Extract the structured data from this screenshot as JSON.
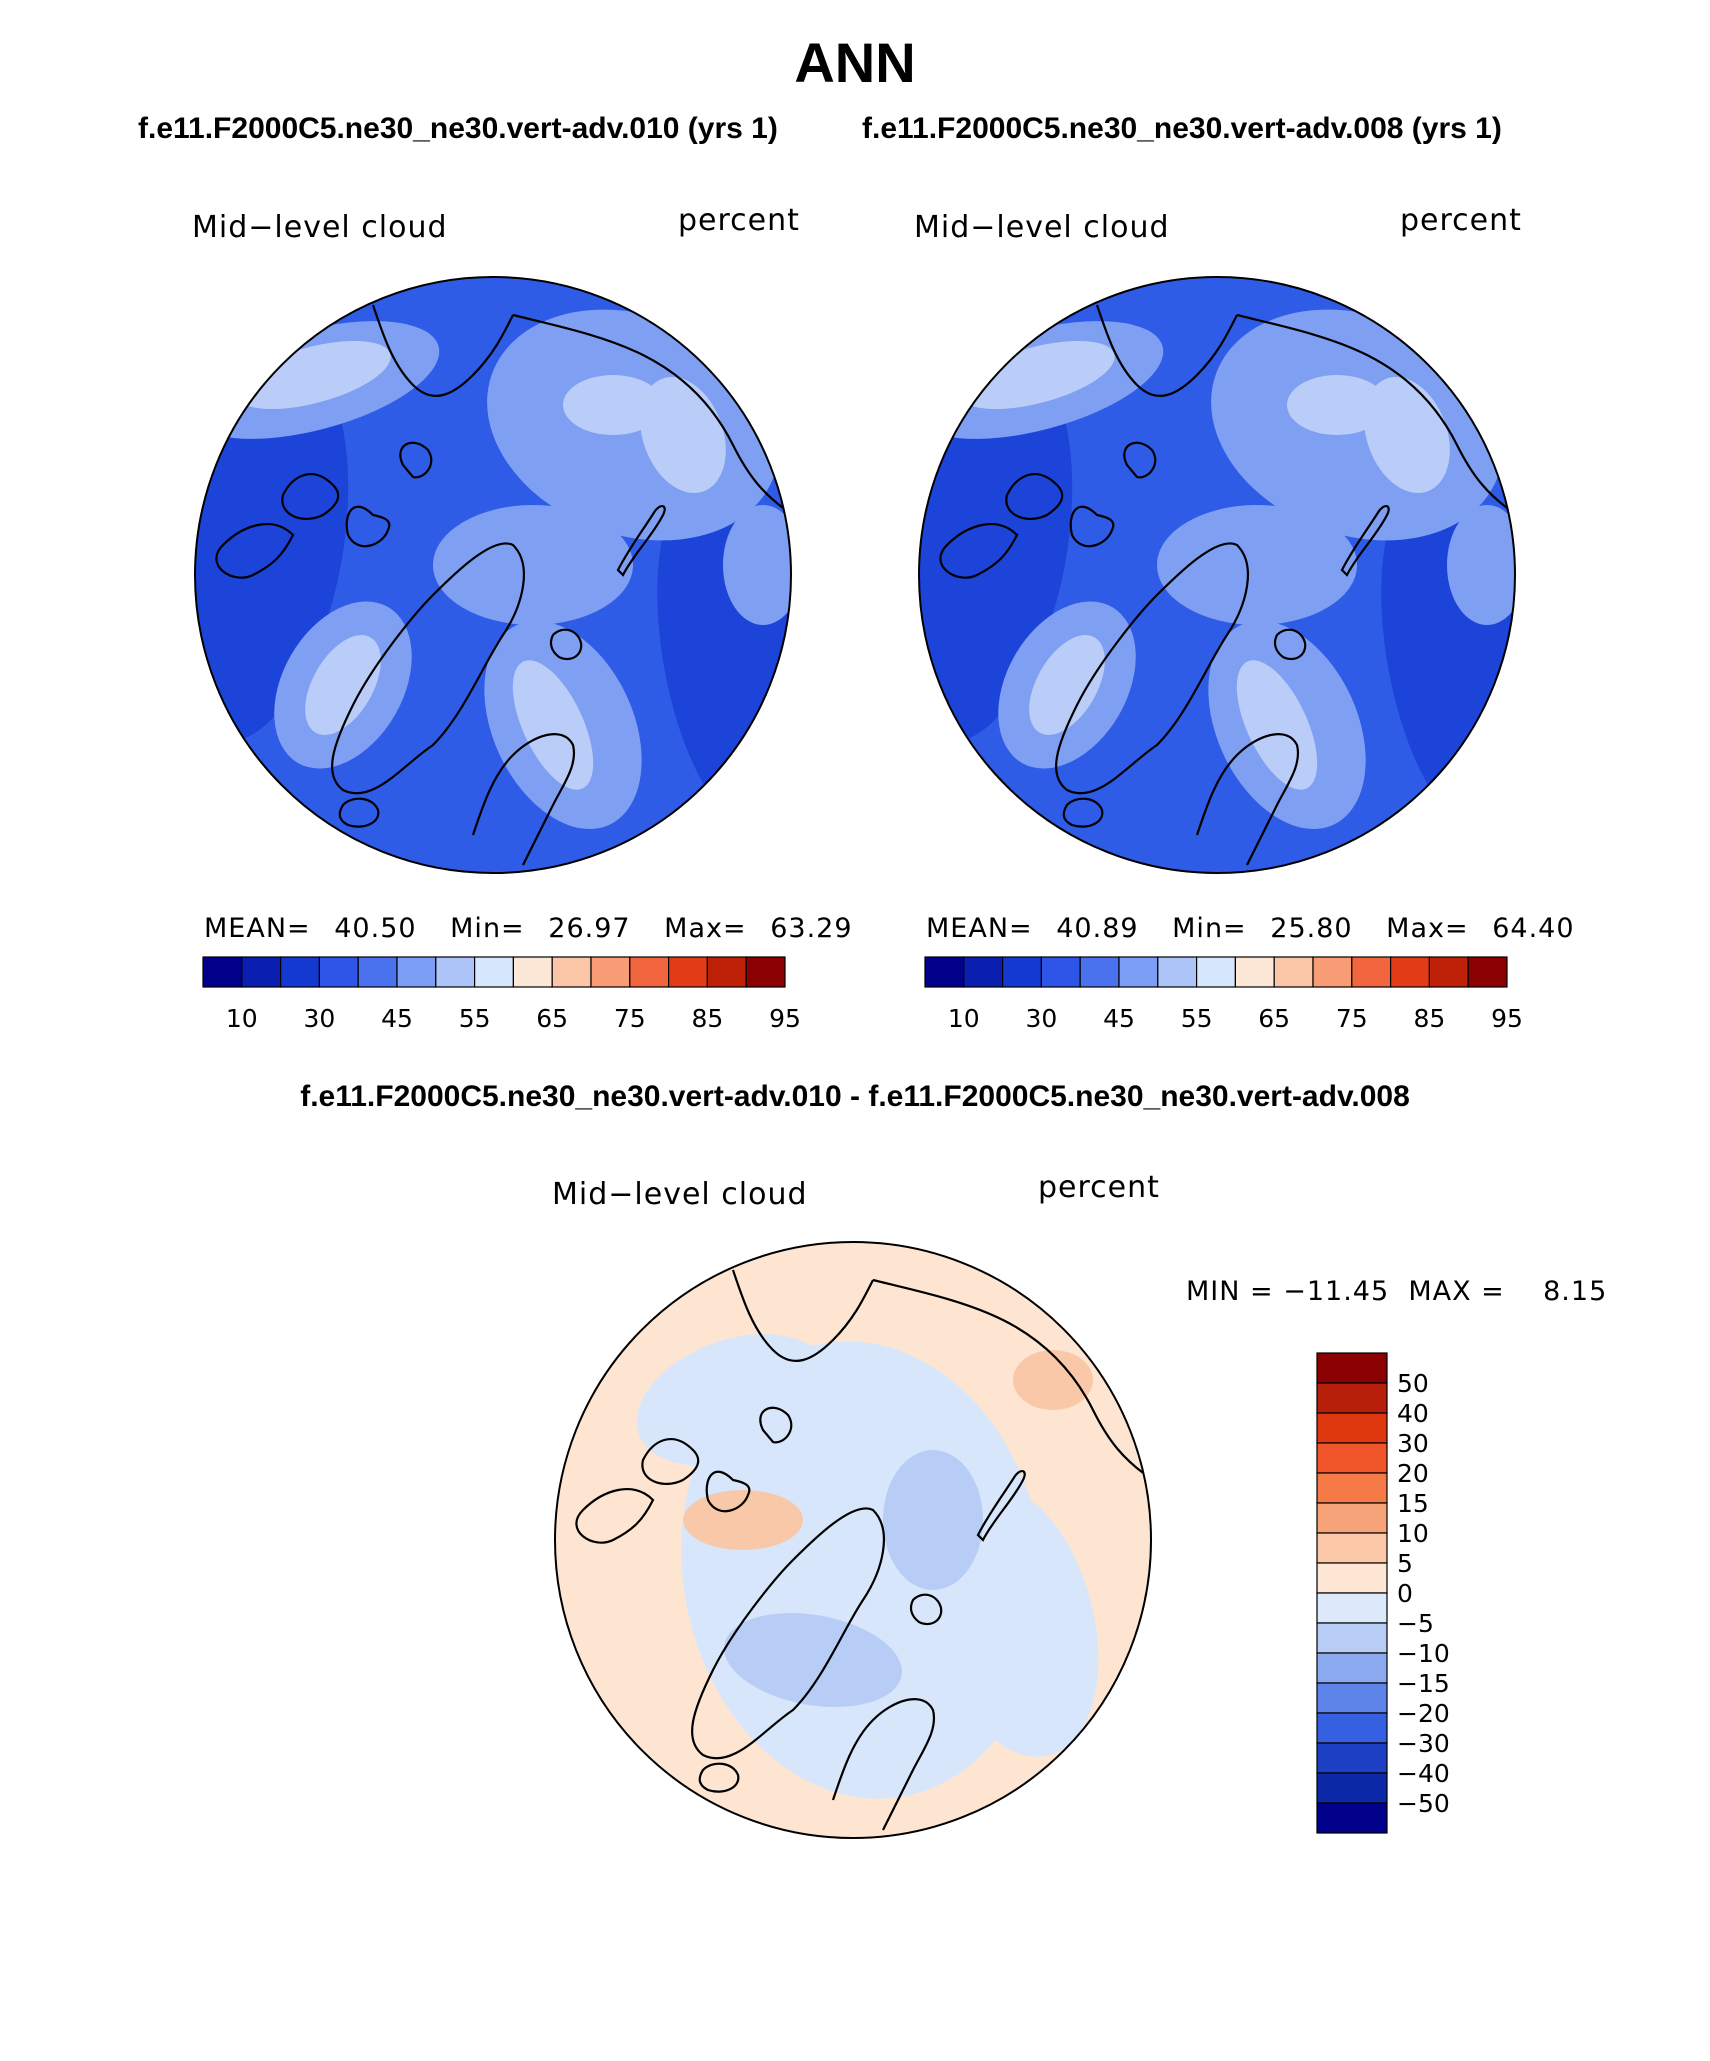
{
  "title": "ANN",
  "panels_header": {
    "left_case": "f.e11.F2000C5.ne30_ne30.vert-adv.010 (yrs 1)",
    "right_case": "f.e11.F2000C5.ne30_ne30.vert-adv.008 (yrs 1)"
  },
  "panel_left": {
    "variable": "Mid−level cloud",
    "units": "percent",
    "stats": {
      "mean_label": "MEAN=",
      "mean": "40.50",
      "min_label": "Min=",
      "min": "26.97",
      "max_label": "Max=",
      "max": "63.29"
    }
  },
  "panel_right": {
    "variable": "Mid−level cloud",
    "units": "percent",
    "stats": {
      "mean_label": "MEAN=",
      "mean": "40.89",
      "min_label": "Min=",
      "min": "25.80",
      "max_label": "Max=",
      "max": "64.40"
    }
  },
  "abs_colorbar": {
    "labels": [
      "10",
      "30",
      "45",
      "55",
      "65",
      "75",
      "85",
      "95"
    ],
    "colors": [
      "#00008b",
      "#0a1fb0",
      "#1439d0",
      "#2d55e8",
      "#4a72ee",
      "#7c9ef5",
      "#acc4f8",
      "#d6e6fc",
      "#fde8d8",
      "#fbc5a8",
      "#f79c74",
      "#f1663f",
      "#e23b18",
      "#bf2008",
      "#8b0000"
    ]
  },
  "diff_panel": {
    "title": "f.e11.F2000C5.ne30_ne30.vert-adv.010 - f.e11.F2000C5.ne30_ne30.vert-adv.008",
    "variable": "Mid−level cloud",
    "units": "percent",
    "minmax_text": "MIN = −11.45  MAX =    8.15",
    "colorbar_labels": [
      "50",
      "40",
      "30",
      "20",
      "15",
      "10",
      "5",
      "0",
      "−5",
      "−10",
      "−15",
      "−20",
      "−30",
      "−40",
      "−50"
    ],
    "colorbar_colors": [
      "#8b0000",
      "#b8200b",
      "#e0380e",
      "#f1562a",
      "#f57a48",
      "#f7a37a",
      "#fbc9a8",
      "#fde6d4",
      "#dce9fb",
      "#b7cdf6",
      "#8caaf0",
      "#5e84ea",
      "#3560e2",
      "#1c3fc4",
      "#0b28a6",
      "#00008b"
    ]
  },
  "map_colors": {
    "ocean_mid": "#2f5ce6",
    "ocean_dark": "#1c44d8",
    "light_region": "#7fa0f2",
    "pale_region": "#b9cdf8",
    "whitish": "#d9e6fc",
    "diff_pos": "#fde5d2",
    "diff_neg": "#d8e6fb",
    "diff_neg2": "#b8cdf6",
    "diff_pos2": "#f9c8a8"
  }
}
